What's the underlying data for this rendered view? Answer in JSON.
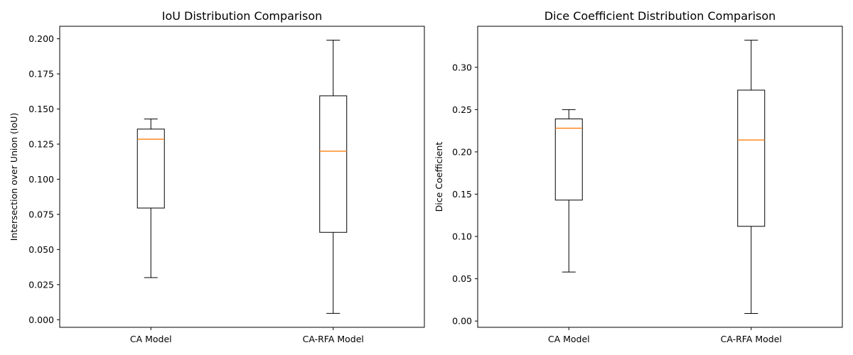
{
  "chart_data": [
    {
      "type": "box",
      "title": "IoU Distribution Comparison",
      "xlabel": "",
      "ylabel": "Intersection over Union (IoU)",
      "categories": [
        "CA Model",
        "CA-RFA Model"
      ],
      "ylim": [
        -0.0054,
        0.2089
      ],
      "yticks": [
        0.0,
        0.025,
        0.05,
        0.075,
        0.1,
        0.125,
        0.15,
        0.175,
        0.2
      ],
      "ytick_labels": [
        "0.000",
        "0.025",
        "0.050",
        "0.075",
        "0.100",
        "0.125",
        "0.150",
        "0.175",
        "0.200"
      ],
      "boxes": [
        {
          "whislo": 0.03,
          "q1": 0.0795,
          "med": 0.1285,
          "q3": 0.1357,
          "whishi": 0.1429
        },
        {
          "whislo": 0.0045,
          "q1": 0.0622,
          "med": 0.12,
          "q3": 0.1594,
          "whishi": 0.199
        }
      ],
      "grid": false,
      "median_color": "#ff7f0e"
    },
    {
      "type": "box",
      "title": "Dice Coefficient Distribution Comparison",
      "xlabel": "",
      "ylabel": "Dice Coefficient",
      "categories": [
        "CA Model",
        "CA-RFA Model"
      ],
      "ylim": [
        -0.0074,
        0.3485
      ],
      "yticks": [
        0.0,
        0.05,
        0.1,
        0.15,
        0.2,
        0.25,
        0.3
      ],
      "ytick_labels": [
        "0.00",
        "0.05",
        "0.10",
        "0.15",
        "0.20",
        "0.25",
        "0.30"
      ],
      "boxes": [
        {
          "whislo": 0.058,
          "q1": 0.143,
          "med": 0.228,
          "q3": 0.239,
          "whishi": 0.25
        },
        {
          "whislo": 0.009,
          "q1": 0.112,
          "med": 0.214,
          "q3": 0.273,
          "whishi": 0.332
        }
      ],
      "grid": false,
      "median_color": "#ff7f0e"
    }
  ]
}
